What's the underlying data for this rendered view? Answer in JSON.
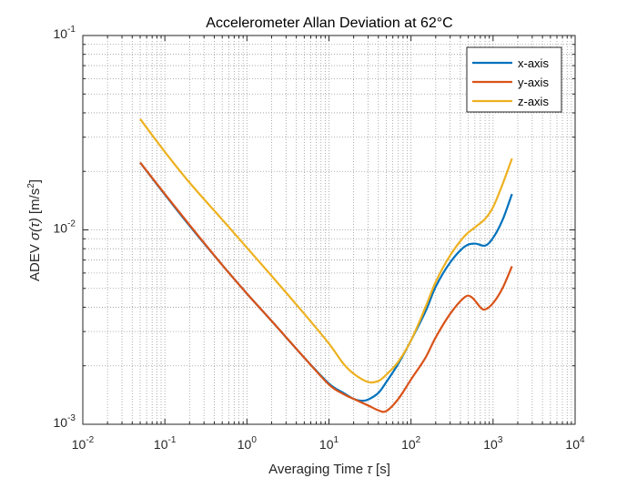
{
  "chart_data": {
    "type": "line",
    "title": "Accelerometer Allan Deviation at 62°C",
    "xlabel": {
      "pre": "Averaging Time ",
      "sym": "τ",
      "post": " [s]"
    },
    "ylabel": {
      "pre": "ADEV ",
      "sym": "σ(τ)",
      "post": " [m/s",
      "sup": "2",
      "end": "]"
    },
    "x_scale": "log",
    "y_scale": "log",
    "xlim": [
      0.01,
      10000
    ],
    "ylim": [
      0.001,
      0.1
    ],
    "x_ticks": [
      {
        "value": 0.01,
        "base": "10",
        "exp": "-2"
      },
      {
        "value": 0.1,
        "base": "10",
        "exp": "-1"
      },
      {
        "value": 1,
        "base": "10",
        "exp": "0"
      },
      {
        "value": 10,
        "base": "10",
        "exp": "1"
      },
      {
        "value": 100,
        "base": "10",
        "exp": "2"
      },
      {
        "value": 1000,
        "base": "10",
        "exp": "3"
      },
      {
        "value": 10000,
        "base": "10",
        "exp": "4"
      }
    ],
    "y_ticks": [
      {
        "value": 0.001,
        "base": "10",
        "exp": "-3"
      },
      {
        "value": 0.01,
        "base": "10",
        "exp": "-2"
      },
      {
        "value": 0.1,
        "base": "10",
        "exp": "-1"
      }
    ],
    "grid": true,
    "minor_grid": true,
    "legend_position": "top-right",
    "series": [
      {
        "name": "x-axis",
        "color": "#0072BD",
        "points": [
          [
            0.05,
            0.0222
          ],
          [
            0.1,
            0.0152
          ],
          [
            0.2,
            0.0105
          ],
          [
            0.5,
            0.0066
          ],
          [
            1,
            0.0047
          ],
          [
            2,
            0.0034
          ],
          [
            5,
            0.0022
          ],
          [
            10,
            0.00162
          ],
          [
            15,
            0.00145
          ],
          [
            20,
            0.00135
          ],
          [
            25,
            0.00132
          ],
          [
            30,
            0.00134
          ],
          [
            40,
            0.00145
          ],
          [
            50,
            0.00165
          ],
          [
            70,
            0.00205
          ],
          [
            100,
            0.0027
          ],
          [
            150,
            0.0038
          ],
          [
            200,
            0.0051
          ],
          [
            300,
            0.0068
          ],
          [
            450,
            0.0082
          ],
          [
            600,
            0.0085
          ],
          [
            800,
            0.0083
          ],
          [
            1000,
            0.0091
          ],
          [
            1300,
            0.0112
          ],
          [
            1700,
            0.0153
          ]
        ]
      },
      {
        "name": "y-axis",
        "color": "#D95319",
        "points": [
          [
            0.05,
            0.0222
          ],
          [
            0.1,
            0.0153
          ],
          [
            0.2,
            0.0106
          ],
          [
            0.5,
            0.0066
          ],
          [
            1,
            0.0047
          ],
          [
            2,
            0.0034
          ],
          [
            5,
            0.0022
          ],
          [
            10,
            0.0016
          ],
          [
            15,
            0.00143
          ],
          [
            20,
            0.00135
          ],
          [
            30,
            0.00125
          ],
          [
            40,
            0.00118
          ],
          [
            50,
            0.00117
          ],
          [
            70,
            0.00135
          ],
          [
            100,
            0.0017
          ],
          [
            150,
            0.0022
          ],
          [
            200,
            0.0028
          ],
          [
            300,
            0.0037
          ],
          [
            450,
            0.0045
          ],
          [
            550,
            0.0045
          ],
          [
            700,
            0.004
          ],
          [
            800,
            0.0039
          ],
          [
            1000,
            0.0042
          ],
          [
            1300,
            0.005
          ],
          [
            1700,
            0.0065
          ]
        ]
      },
      {
        "name": "z-axis",
        "color": "#EDB120",
        "points": [
          [
            0.05,
            0.0372
          ],
          [
            0.1,
            0.0252
          ],
          [
            0.2,
            0.0175
          ],
          [
            0.5,
            0.0113
          ],
          [
            1,
            0.0081
          ],
          [
            2,
            0.0058
          ],
          [
            5,
            0.0037
          ],
          [
            10,
            0.0026
          ],
          [
            15,
            0.00205
          ],
          [
            20,
            0.00182
          ],
          [
            30,
            0.00165
          ],
          [
            40,
            0.00167
          ],
          [
            50,
            0.0018
          ],
          [
            70,
            0.0021
          ],
          [
            100,
            0.0027
          ],
          [
            150,
            0.004
          ],
          [
            200,
            0.0054
          ],
          [
            300,
            0.0074
          ],
          [
            450,
            0.0093
          ],
          [
            600,
            0.0103
          ],
          [
            800,
            0.0114
          ],
          [
            1000,
            0.0131
          ],
          [
            1300,
            0.0171
          ],
          [
            1700,
            0.0233
          ]
        ]
      }
    ]
  }
}
